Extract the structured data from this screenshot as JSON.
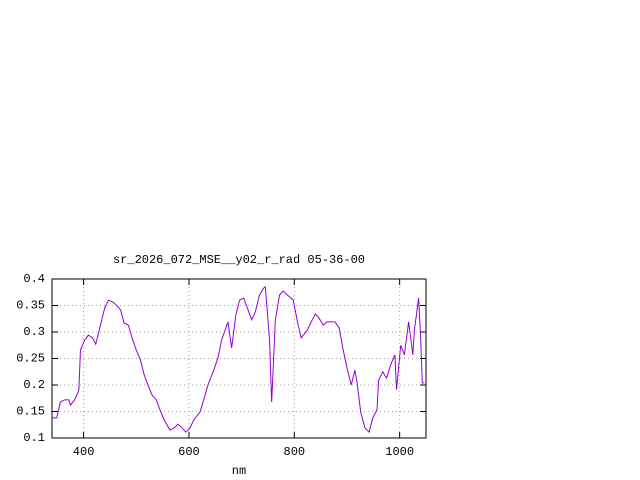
{
  "chart_data": {
    "type": "line",
    "title": "sr_2026_072_MSE__y02_r_rad 05-36-00",
    "x_label": "nm",
    "x": [
      341.5,
      349,
      356,
      364,
      372,
      375,
      383,
      391,
      394,
      402,
      409,
      417,
      423,
      432,
      440,
      447,
      455,
      462,
      470,
      477,
      485,
      492,
      500,
      508,
      515,
      523,
      530,
      538,
      545,
      553,
      564,
      572,
      579,
      587,
      594,
      602,
      609,
      621,
      628,
      636,
      647,
      655,
      662,
      674,
      681,
      689,
      696,
      704,
      711,
      719,
      726,
      734,
      742,
      745,
      753,
      757,
      764,
      772,
      779,
      791,
      798,
      806,
      813,
      825,
      832,
      840,
      847,
      855,
      862,
      870,
      877,
      885,
      892,
      900,
      908,
      915,
      919,
      926,
      934,
      942,
      949,
      957,
      960,
      968,
      975,
      983,
      991,
      994,
      1002,
      1009,
      1017,
      1025,
      1028,
      1036,
      1040,
      1043,
      1047
    ],
    "series": [
      {
        "color": "#9400d3",
        "values": [
          0.138,
          0.138,
          0.168,
          0.172,
          0.172,
          0.162,
          0.172,
          0.19,
          0.266,
          0.285,
          0.294,
          0.289,
          0.277,
          0.313,
          0.345,
          0.36,
          0.357,
          0.351,
          0.342,
          0.317,
          0.313,
          0.289,
          0.266,
          0.247,
          0.219,
          0.198,
          0.181,
          0.172,
          0.153,
          0.134,
          0.115,
          0.119,
          0.126,
          0.119,
          0.111,
          0.119,
          0.134,
          0.149,
          0.172,
          0.2,
          0.228,
          0.251,
          0.285,
          0.319,
          0.27,
          0.332,
          0.36,
          0.364,
          0.345,
          0.323,
          0.338,
          0.37,
          0.383,
          0.385,
          0.285,
          0.168,
          0.323,
          0.37,
          0.377,
          0.366,
          0.36,
          0.319,
          0.289,
          0.304,
          0.319,
          0.334,
          0.326,
          0.313,
          0.319,
          0.319,
          0.319,
          0.308,
          0.27,
          0.232,
          0.2,
          0.228,
          0.206,
          0.149,
          0.119,
          0.111,
          0.138,
          0.153,
          0.209,
          0.225,
          0.213,
          0.238,
          0.257,
          0.191,
          0.275,
          0.257,
          0.319,
          0.257,
          0.304,
          0.364,
          0.285,
          0.204,
          0.204
        ]
      }
    ],
    "xlim": [
      340,
      1050
    ],
    "xticks": [
      400,
      600,
      800,
      1000
    ],
    "ylim": [
      0.1,
      0.4
    ],
    "yticks": [
      0.1,
      0.15,
      0.2,
      0.25,
      0.3,
      0.35,
      0.4
    ],
    "grid": true
  }
}
